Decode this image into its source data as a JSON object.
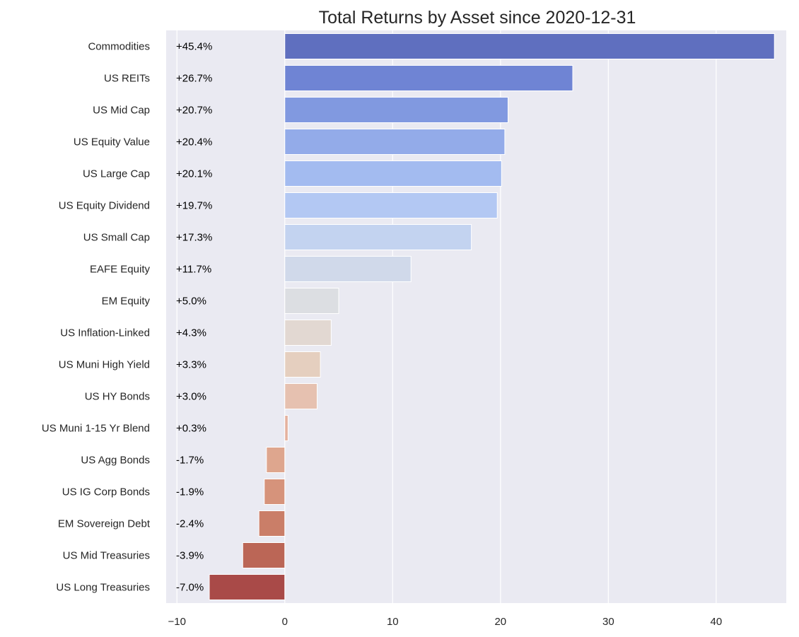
{
  "chart_data": {
    "type": "bar",
    "orientation": "horizontal",
    "title": "Total Returns by Asset since 2020-12-31",
    "xlabel": "",
    "ylabel": "",
    "xlim": [
      -11,
      46.5
    ],
    "x_ticks": [
      -10,
      0,
      10,
      20,
      30,
      40
    ],
    "x_tick_labels": [
      "−10",
      "0",
      "10",
      "20",
      "30",
      "40"
    ],
    "grid": true,
    "categories": [
      "Commodities",
      "US REITs",
      "US Mid Cap",
      "US Equity Value",
      "US Large Cap",
      "US Equity Dividend",
      "US Small Cap",
      "EAFE Equity",
      "EM Equity",
      "US Inflation-Linked",
      "US Muni High Yield",
      "US HY Bonds",
      "US Muni 1-15 Yr Blend",
      "US Agg Bonds",
      "US IG Corp Bonds",
      "EM Sovereign Debt",
      "US Mid Treasuries",
      "US Long Treasuries"
    ],
    "values": [
      45.4,
      26.7,
      20.7,
      20.4,
      20.1,
      19.7,
      17.3,
      11.7,
      5.0,
      4.3,
      3.3,
      3.0,
      0.3,
      -1.7,
      -1.9,
      -2.4,
      -3.9,
      -7.0
    ],
    "value_labels": [
      "+45.4%",
      "+26.7%",
      "+20.7%",
      "+20.4%",
      "+20.1%",
      "+19.7%",
      "+17.3%",
      "+11.7%",
      "+5.0%",
      "+4.3%",
      "+3.3%",
      "+3.0%",
      "+0.3%",
      "-1.7%",
      "-1.9%",
      "-2.4%",
      "-3.9%",
      "-7.0%"
    ],
    "colors": [
      "#5f6fbf",
      "#6f84d4",
      "#8199e0",
      "#93abe9",
      "#a3bbf0",
      "#b3c8f3",
      "#c3d3f0",
      "#d0d9ea",
      "#dcdee2",
      "#e2d8d2",
      "#e5cfbf",
      "#e6c1b0",
      "#e4b19e",
      "#dea68e",
      "#d6937b",
      "#ca7e68",
      "#bb6656",
      "#a94a48"
    ],
    "background_color": "#eaeaf2",
    "grid_color": "#ffffff"
  }
}
